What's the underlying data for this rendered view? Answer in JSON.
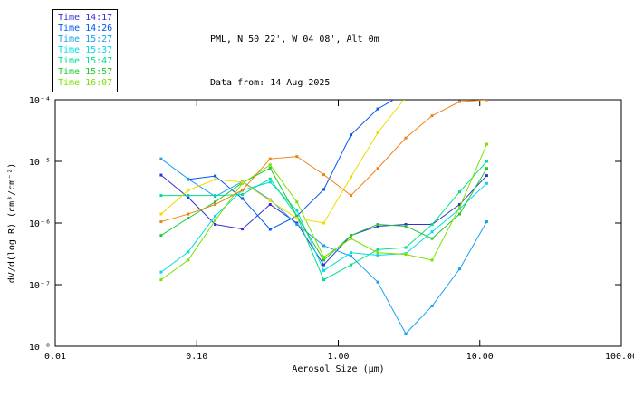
{
  "header": {
    "line1": "PML, N 50 22', W 04 08', Alt 0m",
    "line2": "Data from: 14 Aug 2025"
  },
  "legend": {
    "items": [
      {
        "label": "Time 14:17",
        "color": "#3232d2"
      },
      {
        "label": "Time 14:26",
        "color": "#0055f5"
      },
      {
        "label": "Time 15:27",
        "color": "#18a0f0"
      },
      {
        "label": "Time 15:37",
        "color": "#00dce6"
      },
      {
        "label": "Time 15:47",
        "color": "#00e08c"
      },
      {
        "label": "Time 15:57",
        "color": "#1fc832"
      },
      {
        "label": "Time 16:07",
        "color": "#7de000"
      }
    ]
  },
  "colors": {
    "axis": "#000000",
    "background": "#ffffff"
  },
  "chart_data": {
    "type": "line",
    "title": "PML, N 50 22', W 04 08', Alt 0m",
    "subtitle": "Data from: 14 Aug 2025",
    "xlabel": "Aerosol Size (μm)",
    "ylabel": "dV/d(log R) (cm³/cm⁻²)",
    "x_scale": "log",
    "y_scale": "log",
    "xlim": [
      0.01,
      100
    ],
    "ylim": [
      1e-08,
      0.0001
    ],
    "grid": false,
    "marker": "square",
    "legend_position": "outside-top-left",
    "x_ticks": [
      {
        "value": 0.01,
        "label": "0.01"
      },
      {
        "value": 0.1,
        "label": "0.10"
      },
      {
        "value": 1.0,
        "label": "1.00"
      },
      {
        "value": 10.0,
        "label": "10.00"
      },
      {
        "value": 100.0,
        "label": "100.00"
      }
    ],
    "y_ticks": [
      {
        "value": 0.0001,
        "label": "10⁻⁴"
      },
      {
        "value": 1e-05,
        "label": "10⁻⁵"
      },
      {
        "value": 1e-06,
        "label": "10⁻⁶"
      },
      {
        "value": 1e-07,
        "label": "10⁻⁷"
      },
      {
        "value": 1e-08,
        "label": "10⁻⁸"
      }
    ],
    "x": [
      0.056,
      0.087,
      0.135,
      0.21,
      0.33,
      0.51,
      0.79,
      1.23,
      1.9,
      3.0,
      4.6,
      7.2,
      11.2
    ],
    "series": [
      {
        "name": "Time 14:17",
        "color": "#3232d2",
        "values": [
          6e-06,
          2.6e-06,
          9.5e-07,
          8e-07,
          2e-06,
          1e-06,
          2.1e-07,
          6.3e-07,
          8.9e-07,
          9.5e-07,
          9.5e-07,
          2e-06,
          5.9e-06
        ]
      },
      {
        "name": "Time 14:26",
        "color": "#0055f5",
        "values": [
          null,
          5.1e-06,
          5.8e-06,
          2.5e-06,
          7.9e-07,
          1.3e-06,
          3.5e-06,
          2.7e-05,
          7.1e-05,
          0.00013,
          null,
          null,
          null
        ]
      },
      {
        "name": "Time 15:27",
        "color": "#18a0f0",
        "values": [
          1.1e-05,
          5.2e-06,
          2.7e-06,
          4.7e-06,
          2.4e-06,
          9.5e-07,
          4.3e-07,
          2.9e-07,
          1.1e-07,
          1.6e-08,
          4.5e-08,
          1.8e-07,
          1.05e-06
        ]
      },
      {
        "name": "Time 15:37",
        "color": "#00dce6",
        "values": [
          1.6e-07,
          3.4e-07,
          1.3e-06,
          3.4e-06,
          4.6e-06,
          1.6e-06,
          1.7e-07,
          3.3e-07,
          3e-07,
          3.2e-07,
          7.2e-07,
          1.7e-06,
          4.4e-06
        ]
      },
      {
        "name": "Time 15:47",
        "color": "#00e08c",
        "values": [
          2.8e-06,
          2.8e-06,
          2.8e-06,
          2.9e-06,
          5.2e-06,
          1.3e-06,
          1.2e-07,
          2.1e-07,
          3.7e-07,
          4e-07,
          9.5e-07,
          3.2e-06,
          1e-05
        ]
      },
      {
        "name": "Time 15:57",
        "color": "#1fc832",
        "values": [
          6.3e-07,
          1.2e-06,
          2.2e-06,
          4.5e-06,
          7.8e-06,
          1.3e-06,
          2.5e-07,
          6.3e-07,
          9.5e-07,
          8.9e-07,
          5.6e-07,
          1.4e-06,
          7.7e-06
        ]
      },
      {
        "name": "Time 16:07",
        "color": "#7de000",
        "values": [
          1.2e-07,
          2.5e-07,
          1.1e-06,
          4.4e-06,
          8.8e-06,
          2.2e-06,
          2.8e-07,
          5.6e-07,
          3.3e-07,
          3.1e-07,
          2.5e-07,
          1.8e-06,
          1.9e-05
        ]
      },
      {
        "name": "unlabeled-yellow",
        "color": "#f0dc00",
        "values": [
          1.4e-06,
          3.4e-06,
          5.1e-06,
          4.6e-06,
          2.3e-06,
          1.2e-06,
          1e-06,
          5.6e-06,
          2.9e-05,
          0.00011,
          null,
          null,
          null
        ]
      },
      {
        "name": "unlabeled-orange",
        "color": "#f08214",
        "values": [
          1.05e-06,
          1.4e-06,
          2e-06,
          3.4e-06,
          1.1e-05,
          1.2e-05,
          6.1e-06,
          2.8e-06,
          7.7e-06,
          2.4e-05,
          5.5e-05,
          9.3e-05,
          0.0001
        ]
      }
    ]
  }
}
